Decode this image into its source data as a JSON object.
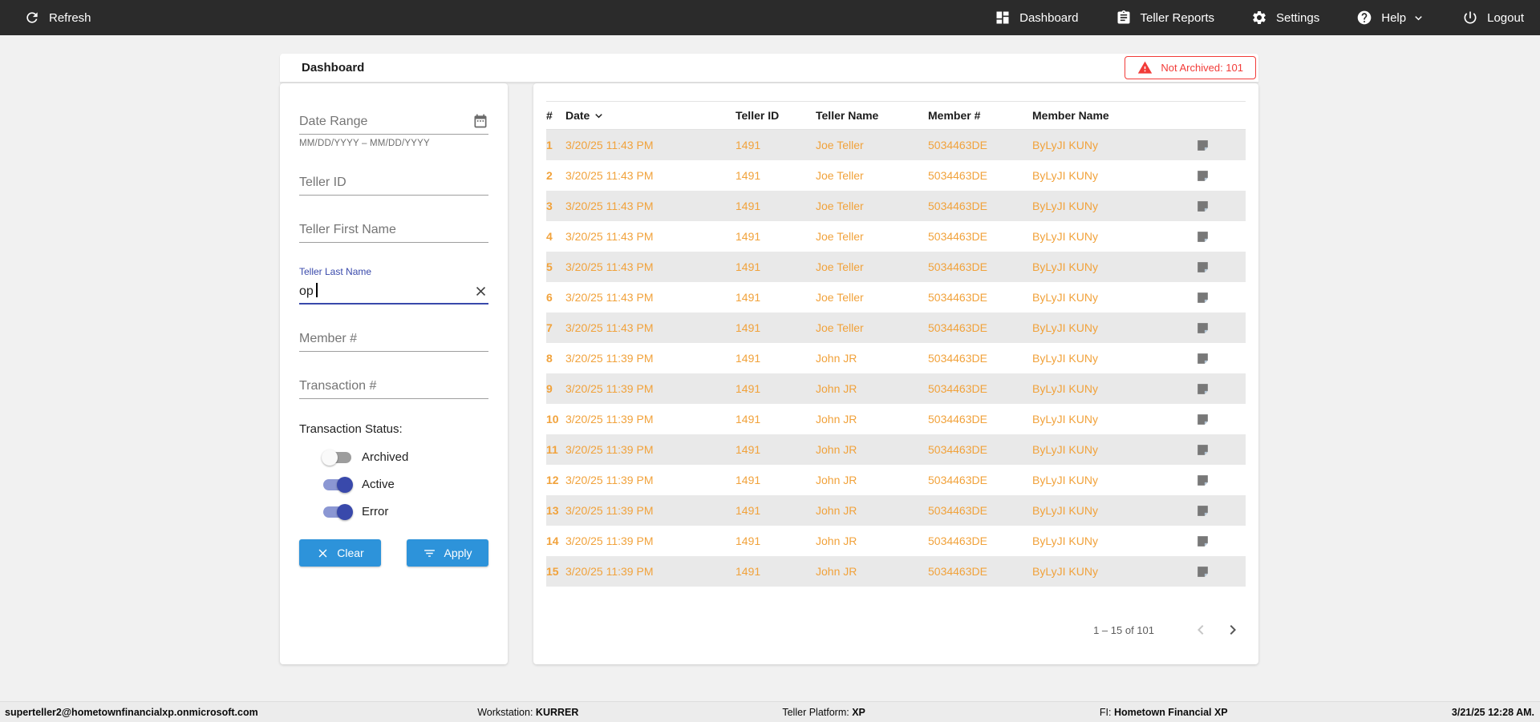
{
  "colors": {
    "accent_orange": "#f1a23b",
    "alert_red": "#f23b38",
    "button_blue": "#2d93da",
    "primary_indigo": "#3949ab",
    "navbar_bg": "#2b2b2b"
  },
  "navbar": {
    "refresh_label": "Refresh",
    "items": [
      {
        "label": "Dashboard",
        "icon": "dashboard"
      },
      {
        "label": "Teller Reports",
        "icon": "reports"
      },
      {
        "label": "Settings",
        "icon": "settings"
      },
      {
        "label": "Help",
        "icon": "help",
        "has_chevron": true
      },
      {
        "label": "Logout",
        "icon": "logout"
      }
    ]
  },
  "page_header": {
    "title": "Dashboard",
    "not_archived_badge": "Not Archived: 101"
  },
  "filters": {
    "date_range_placeholder": "Date Range",
    "date_range_hint": "MM/DD/YYYY – MM/DD/YYYY",
    "teller_id_placeholder": "Teller ID",
    "teller_first_name_placeholder": "Teller First Name",
    "teller_last_name_label": "Teller Last Name",
    "teller_last_name_value": "op",
    "member_number_placeholder": "Member #",
    "transaction_number_placeholder": "Transaction #",
    "transaction_status_label": "Transaction Status:",
    "status_toggles": [
      {
        "label": "Archived",
        "on": false
      },
      {
        "label": "Active",
        "on": true
      },
      {
        "label": "Error",
        "on": true
      }
    ],
    "clear_button": "Clear",
    "apply_button": "Apply"
  },
  "table": {
    "columns": [
      "#",
      "Date",
      "Teller ID",
      "Teller Name",
      "Member #",
      "Member Name"
    ],
    "sorted_by": "Date",
    "sort_direction": "desc",
    "rows": [
      {
        "num": "1",
        "date": "3/20/25 11:43 PM",
        "teller_id": "1491",
        "teller_name": "Joe Teller",
        "member_number": "5034463DE",
        "member_name": "ByLyJI KUNy"
      },
      {
        "num": "2",
        "date": "3/20/25 11:43 PM",
        "teller_id": "1491",
        "teller_name": "Joe Teller",
        "member_number": "5034463DE",
        "member_name": "ByLyJI KUNy"
      },
      {
        "num": "3",
        "date": "3/20/25 11:43 PM",
        "teller_id": "1491",
        "teller_name": "Joe Teller",
        "member_number": "5034463DE",
        "member_name": "ByLyJI KUNy"
      },
      {
        "num": "4",
        "date": "3/20/25 11:43 PM",
        "teller_id": "1491",
        "teller_name": "Joe Teller",
        "member_number": "5034463DE",
        "member_name": "ByLyJI KUNy"
      },
      {
        "num": "5",
        "date": "3/20/25 11:43 PM",
        "teller_id": "1491",
        "teller_name": "Joe Teller",
        "member_number": "5034463DE",
        "member_name": "ByLyJI KUNy"
      },
      {
        "num": "6",
        "date": "3/20/25 11:43 PM",
        "teller_id": "1491",
        "teller_name": "Joe Teller",
        "member_number": "5034463DE",
        "member_name": "ByLyJI KUNy"
      },
      {
        "num": "7",
        "date": "3/20/25 11:43 PM",
        "teller_id": "1491",
        "teller_name": "Joe Teller",
        "member_number": "5034463DE",
        "member_name": "ByLyJI KUNy"
      },
      {
        "num": "8",
        "date": "3/20/25 11:39 PM",
        "teller_id": "1491",
        "teller_name": "John JR",
        "member_number": "5034463DE",
        "member_name": "ByLyJI KUNy"
      },
      {
        "num": "9",
        "date": "3/20/25 11:39 PM",
        "teller_id": "1491",
        "teller_name": "John JR",
        "member_number": "5034463DE",
        "member_name": "ByLyJI KUNy"
      },
      {
        "num": "10",
        "date": "3/20/25 11:39 PM",
        "teller_id": "1491",
        "teller_name": "John JR",
        "member_number": "5034463DE",
        "member_name": "ByLyJI KUNy"
      },
      {
        "num": "11",
        "date": "3/20/25 11:39 PM",
        "teller_id": "1491",
        "teller_name": "John JR",
        "member_number": "5034463DE",
        "member_name": "ByLyJI KUNy"
      },
      {
        "num": "12",
        "date": "3/20/25 11:39 PM",
        "teller_id": "1491",
        "teller_name": "John JR",
        "member_number": "5034463DE",
        "member_name": "ByLyJI KUNy"
      },
      {
        "num": "13",
        "date": "3/20/25 11:39 PM",
        "teller_id": "1491",
        "teller_name": "John JR",
        "member_number": "5034463DE",
        "member_name": "ByLyJI KUNy"
      },
      {
        "num": "14",
        "date": "3/20/25 11:39 PM",
        "teller_id": "1491",
        "teller_name": "John JR",
        "member_number": "5034463DE",
        "member_name": "ByLyJI KUNy"
      },
      {
        "num": "15",
        "date": "3/20/25 11:39 PM",
        "teller_id": "1491",
        "teller_name": "John JR",
        "member_number": "5034463DE",
        "member_name": "ByLyJI KUNy"
      }
    ],
    "pagination": {
      "range_label": "1 – 15 of 101"
    }
  },
  "footer": {
    "user_email": "superteller2@hometownfinancialxp.onmicrosoft.com",
    "workstation_label": "Workstation:",
    "workstation_value": "KURRER",
    "platform_label": "Teller Platform:",
    "platform_value": "XP",
    "fi_label": "FI:",
    "fi_value": "Hometown Financial XP",
    "datetime": "3/21/25 12:28 AM."
  }
}
